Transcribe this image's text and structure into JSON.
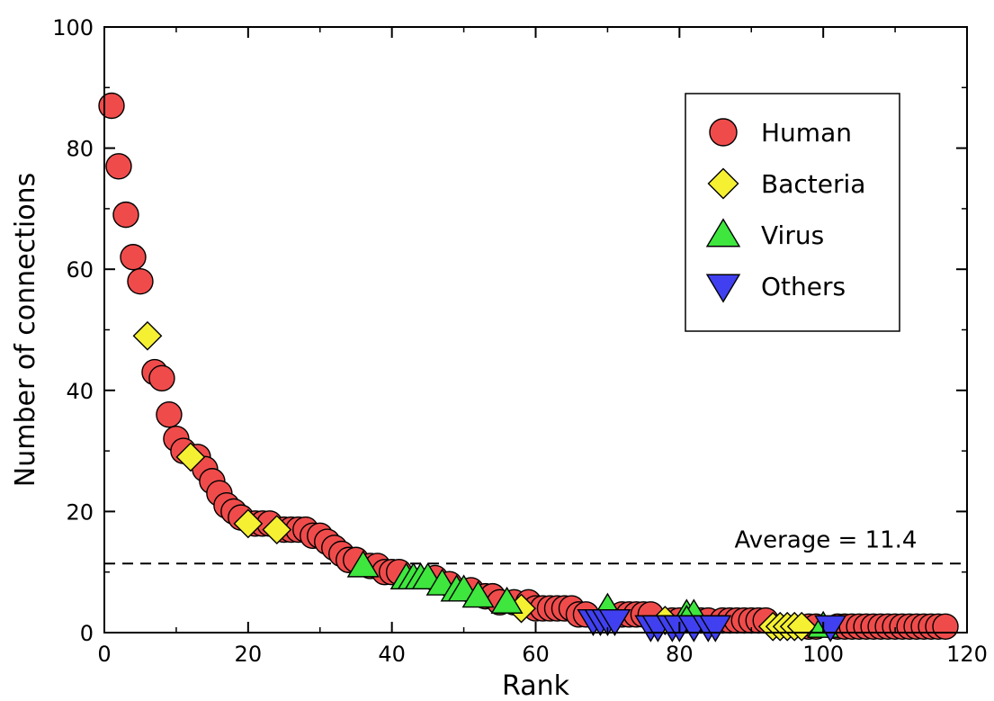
{
  "chart_data": {
    "type": "scatter",
    "xlabel": "Rank",
    "ylabel": "Number of connections",
    "xlim": [
      0,
      120
    ],
    "ylim": [
      0,
      100
    ],
    "xticks": [
      0,
      20,
      40,
      60,
      80,
      100,
      120
    ],
    "yticks": [
      0,
      20,
      40,
      60,
      80,
      100
    ],
    "grid": false,
    "legend_position": "top-right",
    "reference_line": {
      "y": 11.4,
      "style": "dashed",
      "label": "Average = 11.4"
    },
    "series": [
      {
        "name": "Human",
        "marker": "circle",
        "color": "#f04b4b",
        "points": [
          [
            1,
            87
          ],
          [
            2,
            77
          ],
          [
            3,
            69
          ],
          [
            4,
            62
          ],
          [
            5,
            58
          ],
          [
            7,
            43
          ],
          [
            8,
            42
          ],
          [
            9,
            36
          ],
          [
            10,
            32
          ],
          [
            11,
            30
          ],
          [
            13,
            29
          ],
          [
            14,
            27
          ],
          [
            15,
            25
          ],
          [
            16,
            23
          ],
          [
            17,
            21
          ],
          [
            18,
            20
          ],
          [
            19,
            19
          ],
          [
            21,
            18
          ],
          [
            22,
            18
          ],
          [
            23,
            18
          ],
          [
            25,
            17
          ],
          [
            26,
            17
          ],
          [
            27,
            17
          ],
          [
            28,
            17
          ],
          [
            29,
            16
          ],
          [
            30,
            16
          ],
          [
            31,
            15
          ],
          [
            32,
            14
          ],
          [
            33,
            13
          ],
          [
            34,
            12
          ],
          [
            35,
            12
          ],
          [
            37,
            11
          ],
          [
            38,
            11
          ],
          [
            39,
            10
          ],
          [
            40,
            10
          ],
          [
            41,
            10
          ],
          [
            46,
            9
          ],
          [
            48,
            8
          ],
          [
            51,
            7
          ],
          [
            53,
            6
          ],
          [
            54,
            6
          ],
          [
            55,
            5
          ],
          [
            57,
            5
          ],
          [
            59,
            5
          ],
          [
            60,
            4
          ],
          [
            61,
            4
          ],
          [
            62,
            4
          ],
          [
            63,
            4
          ],
          [
            64,
            4
          ],
          [
            65,
            4
          ],
          [
            66,
            3
          ],
          [
            67,
            3
          ],
          [
            72,
            3
          ],
          [
            73,
            3
          ],
          [
            74,
            3
          ],
          [
            75,
            3
          ],
          [
            76,
            3
          ],
          [
            79,
            2
          ],
          [
            80,
            2
          ],
          [
            83,
            2
          ],
          [
            84,
            2
          ],
          [
            86,
            2
          ],
          [
            87,
            2
          ],
          [
            88,
            2
          ],
          [
            89,
            2
          ],
          [
            90,
            2
          ],
          [
            91,
            2
          ],
          [
            92,
            2
          ],
          [
            98,
            1
          ],
          [
            99,
            1
          ],
          [
            102,
            1
          ],
          [
            103,
            1
          ],
          [
            104,
            1
          ],
          [
            105,
            1
          ],
          [
            106,
            1
          ],
          [
            107,
            1
          ],
          [
            108,
            1
          ],
          [
            109,
            1
          ],
          [
            110,
            1
          ],
          [
            111,
            1
          ],
          [
            112,
            1
          ],
          [
            113,
            1
          ],
          [
            114,
            1
          ],
          [
            115,
            1
          ],
          [
            116,
            1
          ],
          [
            117,
            1
          ]
        ]
      },
      {
        "name": "Bacteria",
        "marker": "diamond",
        "color": "#f5f032",
        "points": [
          [
            6,
            49
          ],
          [
            12,
            29
          ],
          [
            20,
            18
          ],
          [
            24,
            17
          ],
          [
            58,
            4
          ],
          [
            78,
            2
          ],
          [
            93,
            1
          ],
          [
            94,
            1
          ],
          [
            95,
            1
          ],
          [
            96,
            1
          ],
          [
            97,
            1
          ]
        ]
      },
      {
        "name": "Virus",
        "marker": "triangle-up",
        "color": "#3ee63e",
        "points": [
          [
            36,
            11
          ],
          [
            42,
            9
          ],
          [
            43,
            9
          ],
          [
            44,
            9
          ],
          [
            45,
            9
          ],
          [
            47,
            8
          ],
          [
            49,
            7
          ],
          [
            50,
            7
          ],
          [
            52,
            6
          ],
          [
            56,
            5
          ],
          [
            70,
            4
          ],
          [
            81,
            3
          ],
          [
            82,
            3
          ],
          [
            81,
            2
          ],
          [
            100,
            1
          ]
        ]
      },
      {
        "name": "Others",
        "marker": "triangle-down",
        "color": "#4040f0",
        "points": [
          [
            68,
            2
          ],
          [
            69,
            2
          ],
          [
            70,
            2
          ],
          [
            71,
            2
          ],
          [
            76,
            1
          ],
          [
            77,
            1
          ],
          [
            79,
            1
          ],
          [
            80,
            1
          ],
          [
            82,
            1
          ],
          [
            84,
            1
          ],
          [
            85,
            1
          ],
          [
            101,
            1
          ]
        ]
      }
    ]
  }
}
